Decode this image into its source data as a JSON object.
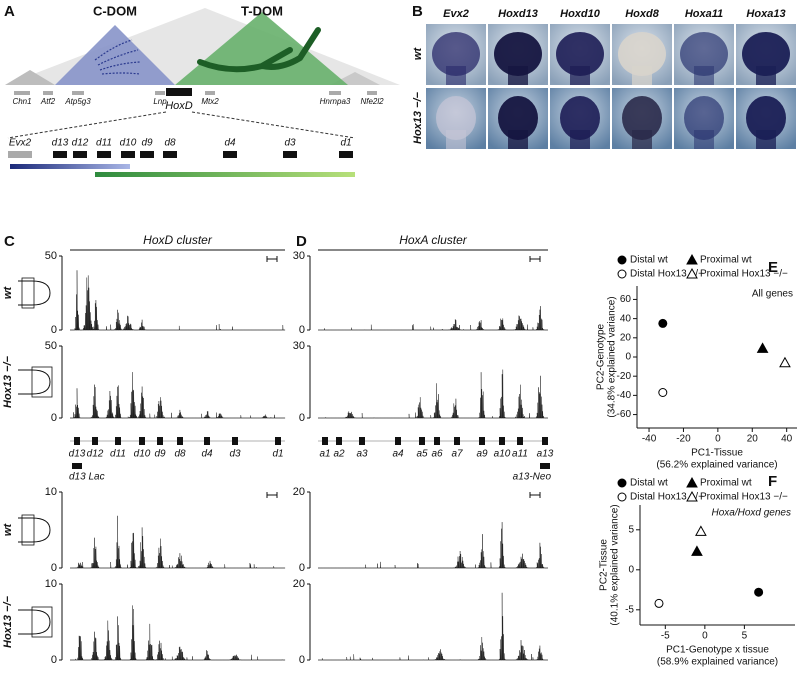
{
  "panel_letters": [
    "A",
    "B",
    "C",
    "D",
    "E",
    "F"
  ],
  "panel_a": {
    "domains": [
      "C-DOM",
      "T-DOM"
    ],
    "genes": [
      "Chn1",
      "Atf2",
      "Atp5g3",
      "Lnp",
      "HoxD",
      "Mtx2",
      "Hnrnpa3",
      "Nfe2l2"
    ],
    "cluster": [
      "Evx2",
      "d13",
      "d12",
      "d11",
      "d10",
      "d9",
      "d8",
      "d4",
      "d3",
      "d1"
    ]
  },
  "panel_b": {
    "columns": [
      "Evx2",
      "Hoxd13",
      "Hoxd10",
      "Hoxd8",
      "Hoxa11",
      "Hoxa13"
    ],
    "rows": [
      "wt",
      "Hox13 −/−"
    ]
  },
  "panel_c": {
    "title": "HoxD cluster",
    "tracks": [
      {
        "label": "wt",
        "ymax": 50,
        "ymin": 0
      },
      {
        "label": "Hox13 −/−",
        "ymax": 50,
        "ymin": 0
      },
      {
        "label": "wt",
        "ymax": 10,
        "ymin": 0
      },
      {
        "label": "Hox13 −/−",
        "ymax": 10,
        "ymin": 0
      }
    ],
    "genes": [
      "d13",
      "d12",
      "d11",
      "d10",
      "d9",
      "d8",
      "d4",
      "d3",
      "d1"
    ],
    "construct": "d13 Lac"
  },
  "panel_d": {
    "title": "HoxA cluster",
    "tracks": [
      {
        "ymax": 30,
        "ymin": 0
      },
      {
        "ymax": 30,
        "ymin": 0
      },
      {
        "ymax": 20,
        "ymin": 0
      },
      {
        "ymax": 20,
        "ymin": 0
      }
    ],
    "genes": [
      "a1",
      "a2",
      "a3",
      "a4",
      "a5",
      "a6",
      "a7",
      "a9",
      "a10",
      "a11",
      "a13"
    ],
    "construct": "a13-Neo"
  },
  "chart_data": [
    {
      "type": "scatter",
      "title": "All genes",
      "xlabel": [
        "PC1-Tissue",
        "(56.2% explained variance)"
      ],
      "ylabel": [
        "PC2-Genotype",
        "(34.8% explained variance)"
      ],
      "xlim": [
        -47,
        46
      ],
      "ylim": [
        -74,
        74
      ],
      "xticks": [
        -40,
        -20,
        0,
        20,
        40
      ],
      "yticks": [
        -60,
        -40,
        -20,
        0,
        20,
        40,
        60
      ],
      "series": [
        {
          "name": "Distal wt",
          "marker": "circle",
          "filled": true,
          "color": "#000000",
          "x": [
            -32
          ],
          "y": [
            35
          ]
        },
        {
          "name": "Distal Hox13 −/−",
          "marker": "circle",
          "filled": false,
          "color": "#000000",
          "x": [
            -32
          ],
          "y": [
            -37
          ]
        },
        {
          "name": "Proximal wt",
          "marker": "triangle",
          "filled": true,
          "color": "#000000",
          "x": [
            26
          ],
          "y": [
            9
          ]
        },
        {
          "name": "Proximal Hox13 −/−",
          "marker": "triangle",
          "filled": false,
          "color": "#000000",
          "x": [
            39
          ],
          "y": [
            -6
          ]
        }
      ]
    },
    {
      "type": "scatter",
      "title": "Hoxa/Hoxd genes",
      "xlabel": [
        "PC1-Genotype x tissue",
        "(58.9% explained variance)"
      ],
      "ylabel": [
        "PC2-Tissue",
        "(40.1% explained variance)"
      ],
      "xlim": [
        -8.2,
        11.4
      ],
      "ylim": [
        -6.9,
        8.1
      ],
      "xticks": [
        -5,
        0,
        5
      ],
      "yticks": [
        -5,
        0,
        5
      ],
      "series": [
        {
          "name": "Distal wt",
          "marker": "circle",
          "filled": true,
          "color": "#000000",
          "x": [
            6.8
          ],
          "y": [
            -2.8
          ]
        },
        {
          "name": "Distal Hox13 −/−",
          "marker": "circle",
          "filled": false,
          "color": "#000000",
          "x": [
            -5.8
          ],
          "y": [
            -4.2
          ]
        },
        {
          "name": "Proximal wt",
          "marker": "triangle",
          "filled": true,
          "color": "#000000",
          "x": [
            -1
          ],
          "y": [
            2.3
          ]
        },
        {
          "name": "Proximal Hox13 −/−",
          "marker": "triangle",
          "filled": false,
          "color": "#000000",
          "x": [
            -0.5
          ],
          "y": [
            4.8
          ]
        }
      ]
    }
  ]
}
